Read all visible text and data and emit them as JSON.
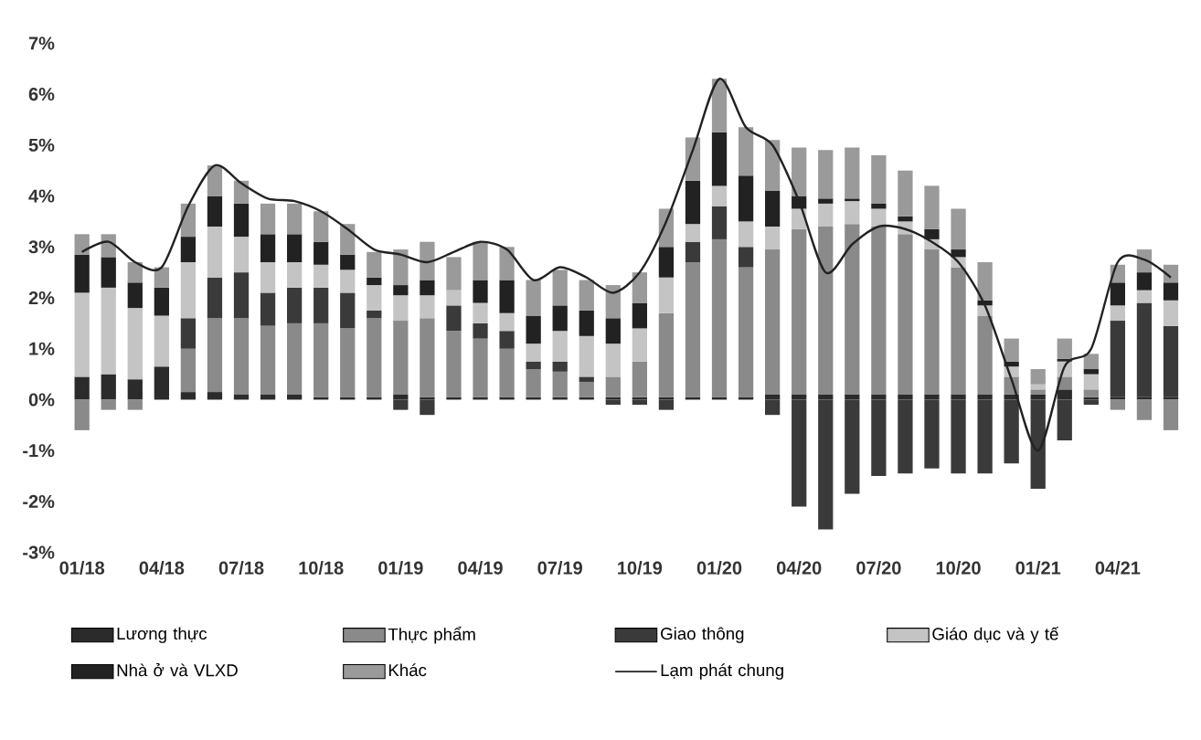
{
  "chart_data": {
    "type": "bar",
    "stacked": true,
    "legend": "bottom",
    "categories": [
      "01/18",
      null,
      null,
      "04/18",
      null,
      null,
      "07/18",
      null,
      null,
      "10/18",
      null,
      null,
      "01/19",
      null,
      null,
      "04/19",
      null,
      null,
      "07/19",
      null,
      null,
      "10/19",
      null,
      null,
      "01/20",
      null,
      null,
      "04/20",
      null,
      null,
      "07/20",
      null,
      null,
      "10/20",
      null,
      null,
      "01/21",
      null,
      null,
      "04/21",
      null,
      null
    ],
    "ylim": [
      -3,
      7
    ],
    "yticks": [
      {
        "value": -3,
        "label": "-3%"
      },
      {
        "value": -2,
        "label": "-2%"
      },
      {
        "value": -1,
        "label": "-1%"
      },
      {
        "value": 0,
        "label": "0%"
      },
      {
        "value": 1,
        "label": "1%"
      },
      {
        "value": 2,
        "label": "2%"
      },
      {
        "value": 3,
        "label": "3%"
      },
      {
        "value": 4,
        "label": "4%"
      },
      {
        "value": 5,
        "label": "5%"
      },
      {
        "value": 6,
        "label": "6%"
      },
      {
        "value": 7,
        "label": "7%"
      }
    ],
    "series": [
      {
        "name": "Lương thực",
        "color": "#2b2b2b",
        "values": [
          0.45,
          0.5,
          0.4,
          0.65,
          0.15,
          0.15,
          0.1,
          0.1,
          0.1,
          0.05,
          0.05,
          0.05,
          0.1,
          0.05,
          0.05,
          0.05,
          0.05,
          0.05,
          0.05,
          0.05,
          0.05,
          0.05,
          0.05,
          0.05,
          0.05,
          0.05,
          0.1,
          0.1,
          0.1,
          0.1,
          0.1,
          0.1,
          0.1,
          0.1,
          0.1,
          0.1,
          0.1,
          0.2,
          0.05,
          0.05,
          0.05,
          0.05
        ]
      },
      {
        "name": "Thực phẩm",
        "color": "#8a8a8a",
        "values": [
          -0.6,
          -0.2,
          -0.2,
          0,
          0.85,
          1.45,
          1.5,
          1.35,
          1.4,
          1.45,
          1.35,
          1.55,
          1.45,
          1.55,
          1.3,
          1.15,
          0.95,
          0.55,
          0.5,
          0.3,
          0.4,
          0.7,
          1.65,
          2.65,
          3.1,
          2.55,
          2.85,
          3.25,
          3.3,
          3.35,
          3.3,
          3.15,
          2.85,
          2.5,
          1.55,
          0.35,
          0.1,
          0.25,
          0.15,
          -0.2,
          -0.4,
          -0.6
        ]
      },
      {
        "name": "Giao thông",
        "color": "#3a3a3a",
        "values": [
          0,
          0,
          0,
          0,
          0.6,
          0.8,
          0.9,
          0.65,
          0.7,
          0.7,
          0.7,
          0.15,
          -0.2,
          -0.3,
          0.5,
          0.3,
          0.35,
          0.15,
          0.2,
          0.1,
          -0.1,
          -0.1,
          -0.2,
          0.4,
          0.65,
          0.4,
          -0.3,
          -2.1,
          -2.55,
          -1.85,
          -1.5,
          -1.45,
          -1.35,
          -1.45,
          -1.45,
          -1.25,
          -1.75,
          -0.8,
          -0.1,
          1.5,
          1.85,
          1.4
        ]
      },
      {
        "name": "Giáo dục và y tế",
        "color": "#c4c4c4",
        "values": [
          1.65,
          1.7,
          1.4,
          1.0,
          1.1,
          1.0,
          0.7,
          0.6,
          0.5,
          0.45,
          0.45,
          0.5,
          0.5,
          0.45,
          0.3,
          0.4,
          0.35,
          0.35,
          0.6,
          0.8,
          0.65,
          0.65,
          0.7,
          0.35,
          0.4,
          0.5,
          0.45,
          0.4,
          0.45,
          0.45,
          0.35,
          0.25,
          0.2,
          0.2,
          0.2,
          0.2,
          0.1,
          0.3,
          0.3,
          0.3,
          0.25,
          0.5
        ]
      },
      {
        "name": "Nhà ở và VLXD",
        "color": "#222222",
        "values": [
          0.75,
          0.6,
          0.5,
          0.55,
          0.5,
          0.6,
          0.65,
          0.55,
          0.55,
          0.45,
          0.3,
          0.15,
          0.2,
          0.3,
          0,
          0.45,
          0.65,
          0.55,
          0.5,
          0.5,
          0.5,
          0.5,
          0.6,
          0.85,
          1.05,
          0.9,
          0.7,
          0.25,
          0.1,
          0.05,
          0.1,
          0.1,
          0.2,
          0.15,
          0.1,
          0.1,
          0,
          0.05,
          0.1,
          0.45,
          0.35,
          0.35
        ]
      },
      {
        "name": "Khác",
        "color": "#9a9a9a",
        "values": [
          0.4,
          0.45,
          0.4,
          0.4,
          0.65,
          0.6,
          0.45,
          0.6,
          0.6,
          0.6,
          0.6,
          0.5,
          0.7,
          0.75,
          0.65,
          0.75,
          0.65,
          0.7,
          0.7,
          0.6,
          0.65,
          0.6,
          0.75,
          0.85,
          1.05,
          0.95,
          1.0,
          0.95,
          0.95,
          1.0,
          0.95,
          0.9,
          0.85,
          0.8,
          0.75,
          0.45,
          0.3,
          0.4,
          0.3,
          0.35,
          0.45,
          0.35
        ]
      },
      {
        "name": "Lạm phát chung",
        "type": "line",
        "color": "#222222",
        "values": [
          2.9,
          3.1,
          2.7,
          2.6,
          3.8,
          4.6,
          4.25,
          3.95,
          3.9,
          3.7,
          3.35,
          2.95,
          2.85,
          2.7,
          2.9,
          3.1,
          2.95,
          2.35,
          2.6,
          2.4,
          2.1,
          2.5,
          3.5,
          4.9,
          6.3,
          5.35,
          5.0,
          3.9,
          2.5,
          3.05,
          3.4,
          3.35,
          3.1,
          2.7,
          1.85,
          0.4,
          -1.0,
          0.65,
          1.0,
          2.7,
          2.75,
          2.4
        ]
      }
    ]
  }
}
